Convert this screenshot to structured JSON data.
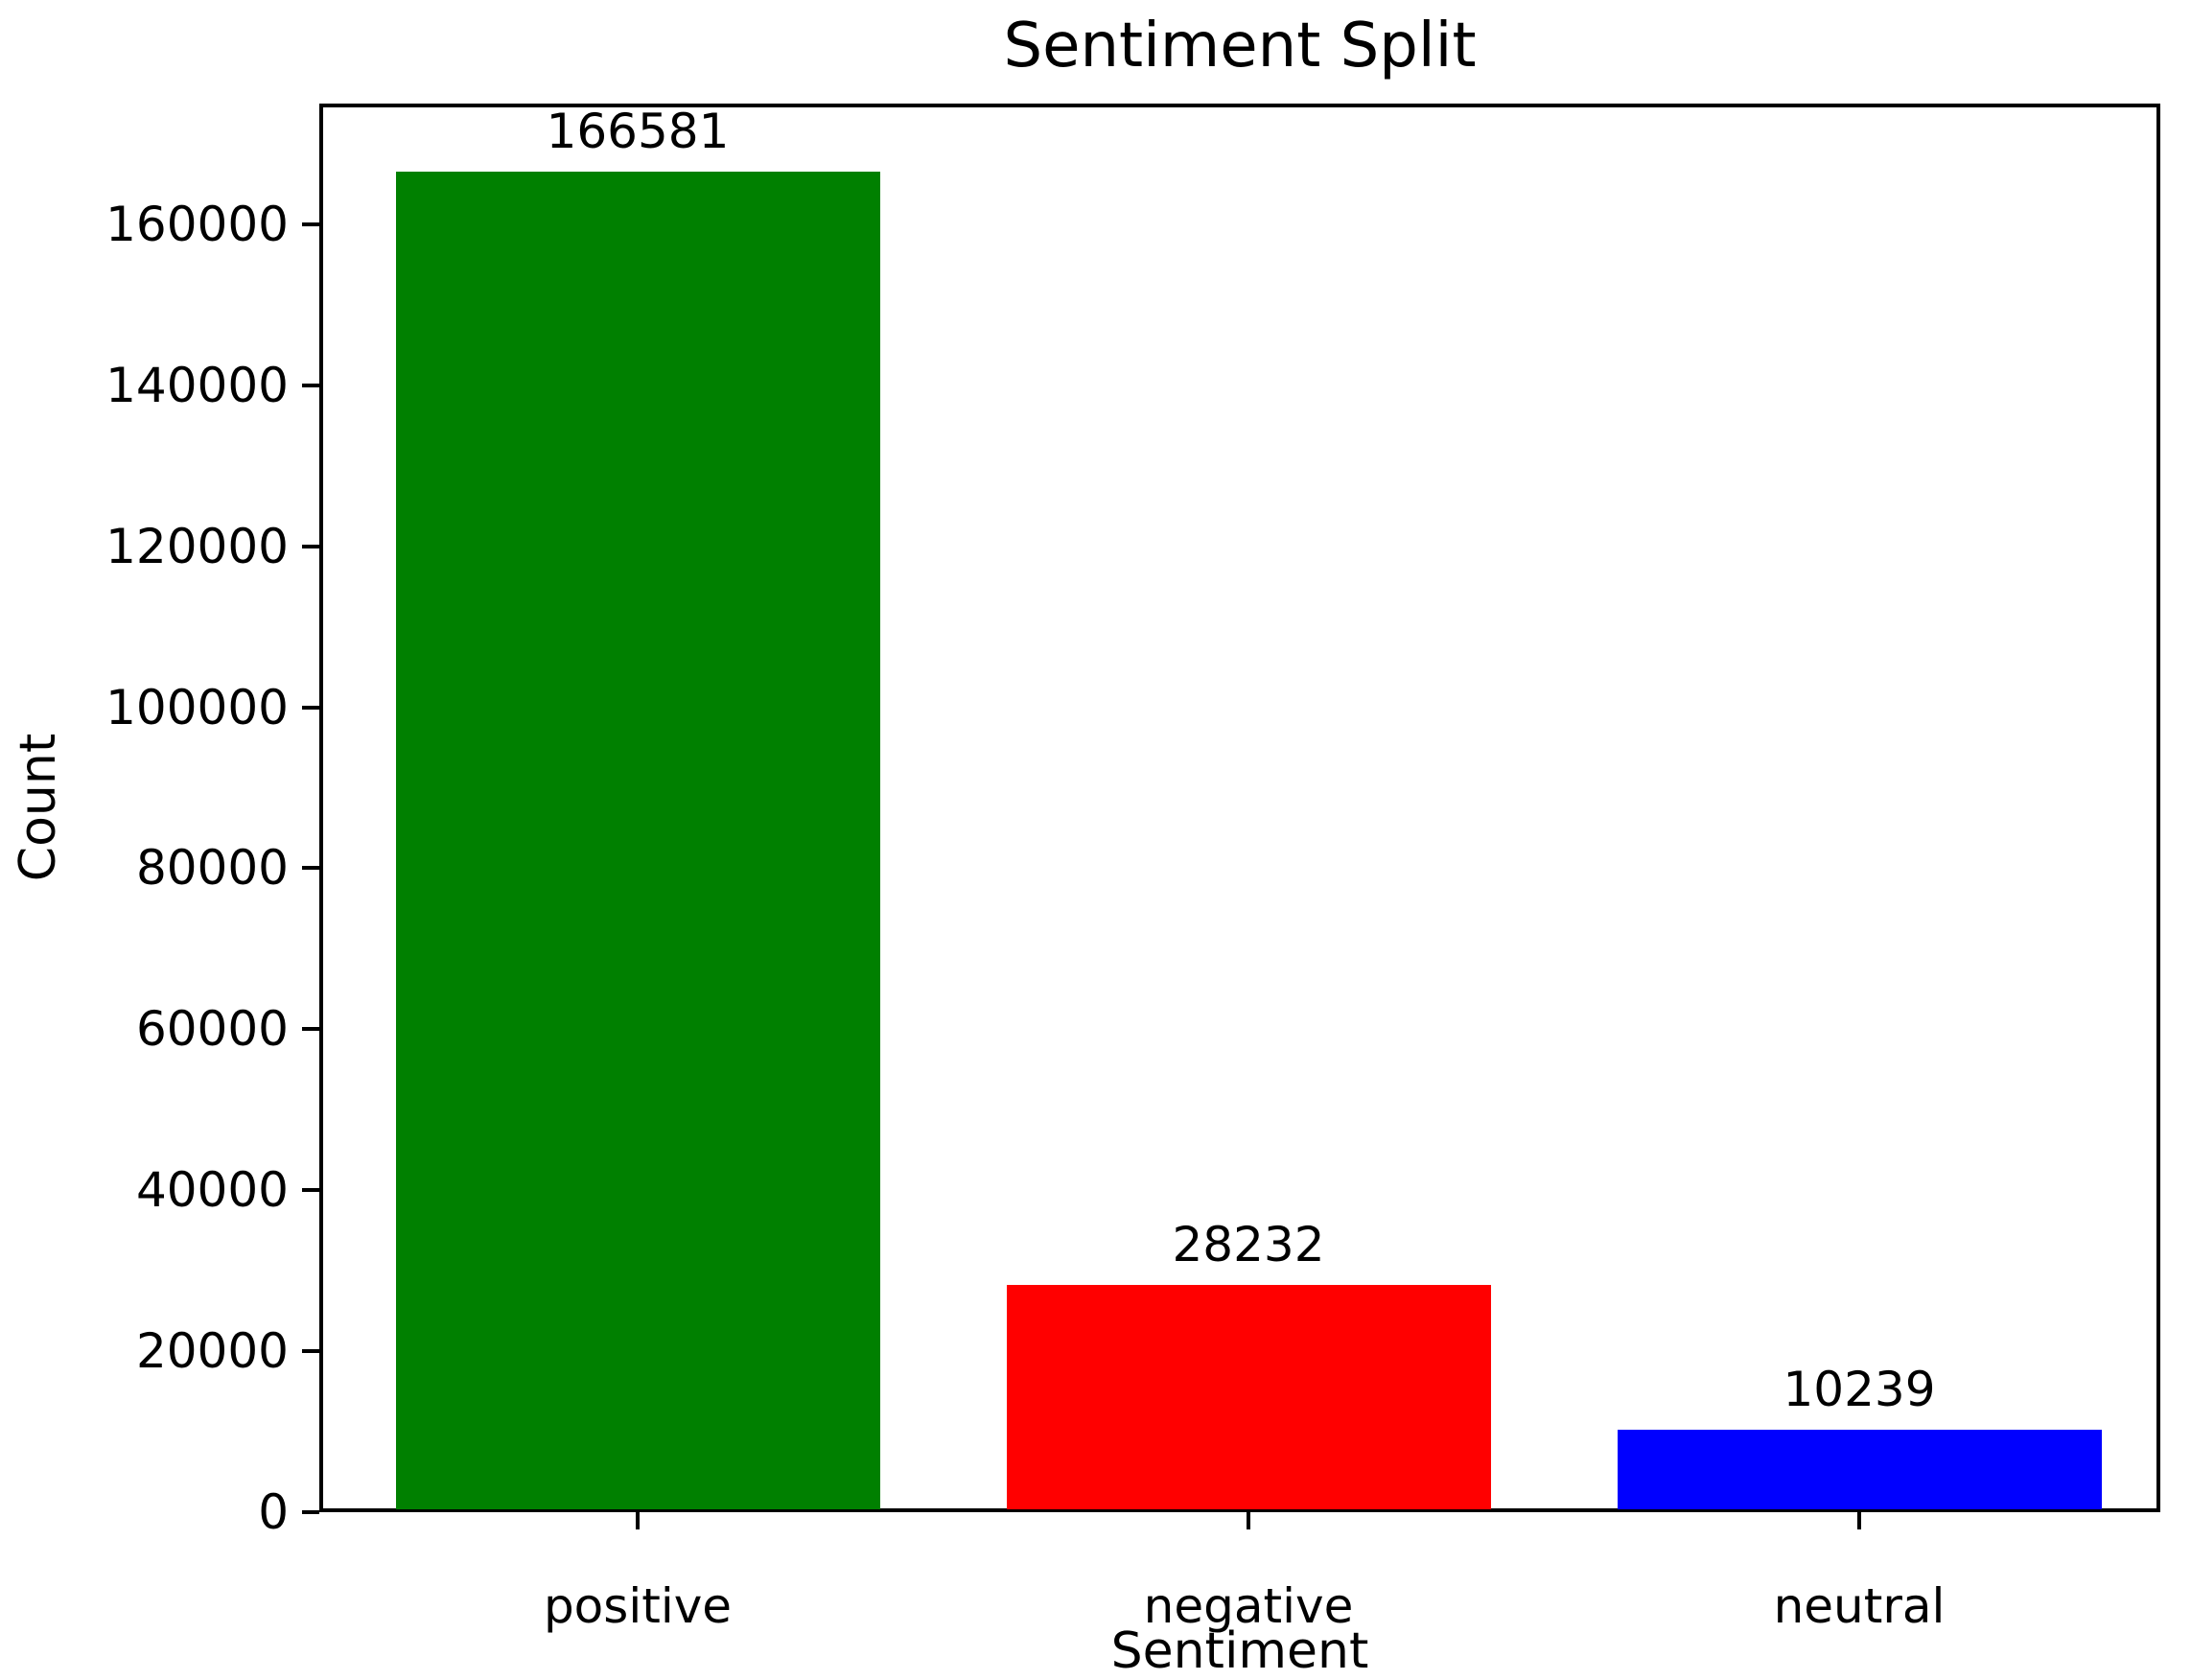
{
  "chart_data": {
    "type": "bar",
    "title": "Sentiment Split",
    "xlabel": "Sentiment",
    "ylabel": "Count",
    "categories": [
      "positive",
      "negative",
      "neutral"
    ],
    "values": [
      166581,
      28232,
      10239
    ],
    "bar_labels": [
      "166581",
      "28232",
      "10239"
    ],
    "bar_colors": [
      "#008000",
      "#ff0000",
      "#0000ff"
    ],
    "yticks": [
      0,
      20000,
      40000,
      60000,
      80000,
      100000,
      120000,
      140000,
      160000
    ],
    "ytick_labels": [
      "0",
      "20000",
      "40000",
      "60000",
      "80000",
      "100000",
      "120000",
      "140000",
      "160000"
    ],
    "ylim": [
      0,
      175000
    ],
    "grid": false,
    "legend": null,
    "axis_color": "#000000",
    "text_color": "#000000",
    "background_color": "#ffffff"
  }
}
